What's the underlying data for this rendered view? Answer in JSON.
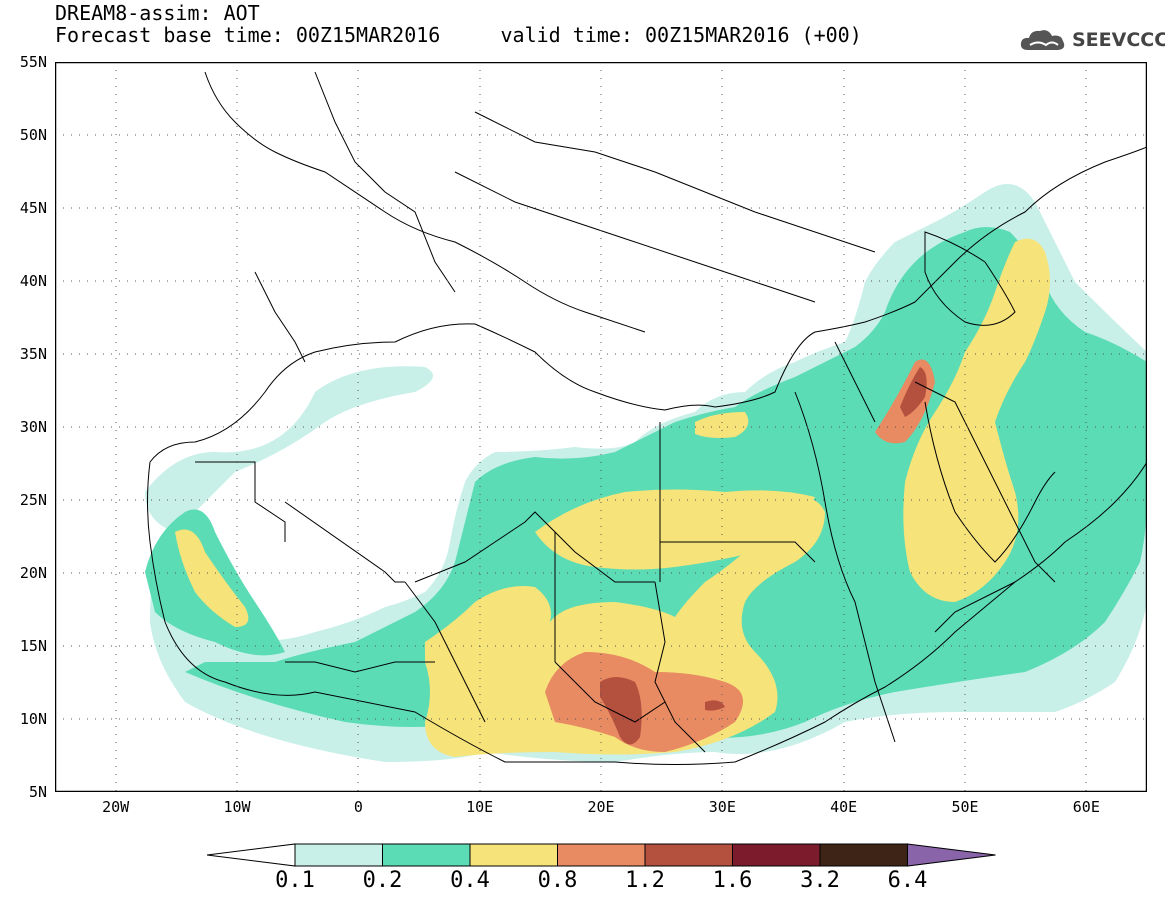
{
  "title": {
    "line1": "DREAM8-assim: AOT",
    "line2": "Forecast base time: 00Z15MAR2016     valid time: 00Z15MAR2016 (+00)"
  },
  "logo": {
    "text": "SEEVCCC",
    "icon": "cloud-icon"
  },
  "map": {
    "projection": "lat-lon",
    "lon_range": [
      -25,
      65
    ],
    "lat_range": [
      5,
      55
    ],
    "lat_labels": [
      "55N",
      "50N",
      "45N",
      "40N",
      "35N",
      "30N",
      "25N",
      "20N",
      "15N",
      "10N",
      "5N"
    ],
    "lon_labels": [
      "20W",
      "10W",
      "0",
      "10E",
      "20E",
      "30E",
      "40E",
      "50E",
      "60E"
    ],
    "gridlines": "dotted"
  },
  "colorbar": {
    "colors": [
      "#ffffff",
      "#c8f0e9",
      "#5bdcb4",
      "#f6e37a",
      "#e88a62",
      "#b4503e",
      "#7c1b2c",
      "#3e2416",
      "#8a64a8"
    ],
    "labels": [
      "0.1",
      "0.2",
      "0.4",
      "0.8",
      "1.2",
      "1.6",
      "3.2",
      "6.4"
    ]
  }
}
